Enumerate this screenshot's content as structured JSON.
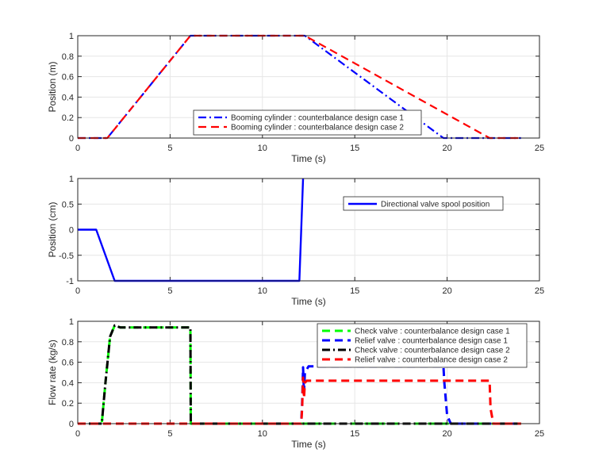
{
  "chart_data": [
    {
      "type": "line",
      "xlabel": "Time (s)",
      "ylabel": "Position (m)",
      "xlim": [
        0,
        25
      ],
      "ylim": [
        0,
        1
      ],
      "xticks": [
        "0",
        "5",
        "10",
        "15",
        "20",
        "25"
      ],
      "yticks": [
        "0",
        "0.2",
        "0.4",
        "0.6",
        "0.8",
        "1"
      ],
      "grid": true,
      "legend_position": "bottom-right",
      "series": [
        {
          "name": "Booming cylinder : counterbalance design case 1",
          "color": "#0000ff",
          "dash": "dash-dot",
          "x": [
            0,
            1.6,
            6.1,
            12.3,
            19.8,
            24
          ],
          "y": [
            0,
            0,
            1,
            1,
            0,
            0
          ]
        },
        {
          "name": "Booming cylinder : counterbalance design case 2",
          "color": "#ff0000",
          "dash": "dashed",
          "x": [
            0,
            1.6,
            6.1,
            12.3,
            22.3,
            24
          ],
          "y": [
            0,
            0,
            1,
            1,
            0,
            0
          ]
        }
      ]
    },
    {
      "type": "line",
      "xlabel": "Time (s)",
      "ylabel": "Position (cm)",
      "xlim": [
        0,
        25
      ],
      "ylim": [
        -1,
        1
      ],
      "xticks": [
        "0",
        "5",
        "10",
        "15",
        "20",
        "25"
      ],
      "yticks": [
        "-1",
        "-0.5",
        "0",
        "0.5",
        "1"
      ],
      "grid": true,
      "legend_position": "top-right",
      "series": [
        {
          "name": "Directional valve spool position",
          "color": "#0000ff",
          "dash": "solid",
          "x": [
            0,
            1,
            2,
            12,
            12.2
          ],
          "y": [
            0,
            0,
            -1,
            -1,
            1
          ]
        }
      ]
    },
    {
      "type": "line",
      "xlabel": "Time (s)",
      "ylabel": "Flow rate (kg/s)",
      "xlim": [
        0,
        25
      ],
      "ylim": [
        0,
        1
      ],
      "xticks": [
        "0",
        "5",
        "10",
        "15",
        "20",
        "25"
      ],
      "yticks": [
        "0",
        "0.2",
        "0.4",
        "0.6",
        "0.8",
        "1"
      ],
      "grid": true,
      "legend_position": "top-right",
      "series": [
        {
          "name": "Check valve : counterbalance design case 1",
          "color": "#00ff00",
          "dash": "dashed",
          "x": [
            0,
            1.3,
            1.5,
            1.75,
            2.0,
            2.3,
            6.1,
            6.12,
            24
          ],
          "y": [
            0,
            0,
            0.4,
            0.85,
            0.96,
            0.94,
            0.94,
            0,
            0
          ]
        },
        {
          "name": "Relief valve : counterbalance design case 1",
          "color": "#0000ff",
          "dash": "dashed",
          "x": [
            0,
            12.1,
            12.15,
            12.2,
            12.25,
            12.3,
            12.5,
            19.8,
            19.85,
            20.0,
            20.2,
            24
          ],
          "y": [
            0,
            0,
            0.2,
            0.55,
            0.3,
            0.5,
            0.56,
            0.56,
            0.4,
            0.08,
            0,
            0
          ]
        },
        {
          "name": "Check valve : counterbalance design case 2",
          "color": "#000000",
          "dash": "dash-dot",
          "x": [
            0,
            1.3,
            1.5,
            1.75,
            2.0,
            2.3,
            6.1,
            6.12,
            24
          ],
          "y": [
            0,
            0,
            0.4,
            0.85,
            0.96,
            0.94,
            0.94,
            0,
            0
          ]
        },
        {
          "name": "Relief valve : counterbalance design case 2",
          "color": "#ff0000",
          "dash": "dashed",
          "x": [
            0,
            12.1,
            12.15,
            12.2,
            12.25,
            12.3,
            12.4,
            22.3,
            22.35,
            22.5,
            24
          ],
          "y": [
            0,
            0,
            0.15,
            0.45,
            0.25,
            0.4,
            0.42,
            0.42,
            0.15,
            0,
            0
          ]
        }
      ]
    }
  ]
}
